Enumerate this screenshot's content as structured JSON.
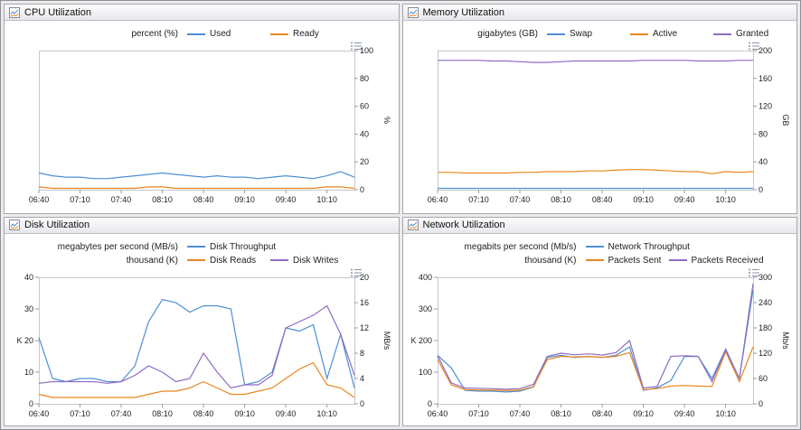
{
  "colors": {
    "blue": "#4f8fd2",
    "orange": "#e8871f",
    "purple": "#8f6cc2",
    "axis": "#9a9aa4",
    "plot_border": "#c7c7cf",
    "tick_text": "#222222"
  },
  "chart_data": [
    {
      "type": "line",
      "title": "CPU Utilization",
      "x_ticks": [
        "06:40",
        "07:10",
        "07:40",
        "08:10",
        "08:40",
        "09:10",
        "09:40",
        "10:10"
      ],
      "right_axis": {
        "label": "%",
        "min": 0,
        "max": 100,
        "ticks": [
          0,
          20,
          40,
          60,
          80,
          100
        ]
      },
      "legend_rows": [
        {
          "unit": "percent (%)",
          "items": [
            "Used",
            "Ready"
          ]
        }
      ],
      "series": [
        {
          "name": "Used",
          "axis": "right",
          "color": "#4f8fd2",
          "values": [
            12,
            10,
            9,
            9,
            8,
            8,
            9,
            10,
            11,
            12,
            11,
            10,
            9,
            10,
            9,
            9,
            8,
            9,
            10,
            9,
            8,
            10,
            13,
            9
          ]
        },
        {
          "name": "Ready",
          "axis": "right",
          "color": "#e8871f",
          "values": [
            2,
            1,
            1,
            1,
            1,
            1,
            1,
            1,
            2,
            2,
            1,
            1,
            1,
            1,
            1,
            1,
            1,
            1,
            1,
            1,
            1,
            2,
            2,
            1
          ]
        }
      ]
    },
    {
      "type": "line",
      "title": "Memory Utilization",
      "x_ticks": [
        "06:40",
        "07:10",
        "07:40",
        "08:10",
        "08:40",
        "09:10",
        "09:40",
        "10:10"
      ],
      "right_axis": {
        "label": "GB",
        "min": 0,
        "max": 200,
        "ticks": [
          0,
          40,
          80,
          120,
          160,
          200
        ]
      },
      "legend_rows": [
        {
          "unit": "gigabytes (GB)",
          "items": [
            "Swap",
            "Active",
            "Granted"
          ]
        }
      ],
      "series": [
        {
          "name": "Swap",
          "axis": "right",
          "color": "#4f8fd2",
          "values": [
            2,
            2,
            2,
            2,
            2,
            2,
            2,
            2,
            2,
            2,
            2,
            2,
            2,
            2,
            2,
            2,
            2,
            2,
            2,
            2,
            2,
            2,
            2,
            2
          ]
        },
        {
          "name": "Active",
          "axis": "right",
          "color": "#e8871f",
          "values": [
            25,
            25,
            24,
            24,
            24,
            24,
            25,
            25,
            26,
            26,
            26,
            27,
            27,
            28,
            29,
            29,
            28,
            27,
            26,
            26,
            23,
            26,
            25,
            26
          ]
        },
        {
          "name": "Granted",
          "axis": "right",
          "color": "#8f6cc2",
          "values": [
            186,
            186,
            186,
            186,
            185,
            185,
            184,
            183,
            183,
            184,
            185,
            185,
            185,
            185,
            185,
            186,
            186,
            186,
            186,
            185,
            185,
            185,
            186,
            186
          ]
        }
      ]
    },
    {
      "type": "line",
      "title": "Disk Utilization",
      "x_ticks": [
        "06:40",
        "07:10",
        "07:40",
        "08:10",
        "08:40",
        "09:10",
        "09:40",
        "10:10"
      ],
      "left_axis": {
        "label": "K",
        "label_at": 20,
        "min": 0,
        "max": 40,
        "ticks": [
          0,
          10,
          20,
          30,
          40
        ]
      },
      "right_axis": {
        "label": "MB/s",
        "min": 0,
        "max": 20,
        "ticks": [
          0,
          4,
          8,
          12,
          16,
          20
        ]
      },
      "legend_rows": [
        {
          "unit": "megabytes per second (MB/s)",
          "items": [
            "Disk Throughput"
          ]
        },
        {
          "unit": "thousand (K)",
          "items": [
            "Disk Reads",
            "Disk Writes"
          ]
        }
      ],
      "series": [
        {
          "name": "Disk Throughput",
          "axis": "right",
          "color": "#4f8fd2",
          "values": [
            10.5,
            4,
            3.5,
            4,
            4,
            3.5,
            3.5,
            6,
            13,
            16.5,
            16,
            14.5,
            15.5,
            15.5,
            15,
            3,
            3.5,
            5,
            12,
            11.5,
            12.5,
            4,
            11,
            2.5
          ]
        },
        {
          "name": "Disk Reads",
          "axis": "left",
          "color": "#e8871f",
          "values": [
            3,
            2,
            2,
            2,
            2,
            2,
            2,
            2,
            3,
            4,
            4,
            5,
            7,
            5,
            3,
            3,
            4,
            5,
            8,
            11,
            13,
            6,
            5,
            2
          ]
        },
        {
          "name": "Disk Writes",
          "axis": "left",
          "color": "#8f6cc2",
          "values": [
            6.5,
            7,
            7,
            7,
            7,
            6.5,
            7,
            9,
            12,
            10,
            7,
            8,
            16,
            10,
            5,
            6,
            6,
            9,
            24,
            26,
            28,
            31,
            22,
            9
          ]
        }
      ]
    },
    {
      "type": "line",
      "title": "Network Utilization",
      "x_ticks": [
        "06:40",
        "07:10",
        "07:40",
        "08:10",
        "08:40",
        "09:10",
        "09:40",
        "10:10"
      ],
      "left_axis": {
        "label": "K",
        "label_at": 200,
        "min": 0,
        "max": 400,
        "ticks": [
          0,
          100,
          200,
          300,
          400
        ]
      },
      "right_axis": {
        "label": "Mb/s",
        "min": 0,
        "max": 300,
        "ticks": [
          0,
          60,
          120,
          180,
          240,
          300
        ]
      },
      "legend_rows": [
        {
          "unit": "megabits per second (Mb/s)",
          "items": [
            "Network Throughput"
          ]
        },
        {
          "unit": "thousand (K)",
          "items": [
            "Packets Sent",
            "Packets Received"
          ]
        }
      ],
      "series": [
        {
          "name": "Network Throughput",
          "axis": "right",
          "color": "#4f8fd2",
          "values": [
            115,
            85,
            32,
            30,
            30,
            28,
            30,
            40,
            110,
            115,
            110,
            112,
            110,
            115,
            135,
            32,
            38,
            55,
            112,
            112,
            60,
            130,
            60,
            270
          ]
        },
        {
          "name": "Packets Sent",
          "axis": "left",
          "color": "#e8871f",
          "values": [
            140,
            60,
            45,
            44,
            43,
            42,
            43,
            55,
            140,
            150,
            148,
            150,
            147,
            150,
            162,
            45,
            48,
            56,
            58,
            56,
            55,
            165,
            70,
            180
          ]
        },
        {
          "name": "Packets Received",
          "axis": "left",
          "color": "#8f6cc2",
          "values": [
            152,
            66,
            50,
            49,
            48,
            46,
            48,
            62,
            150,
            160,
            155,
            158,
            154,
            162,
            200,
            50,
            55,
            150,
            152,
            150,
            70,
            170,
            80,
            380
          ]
        }
      ]
    }
  ]
}
